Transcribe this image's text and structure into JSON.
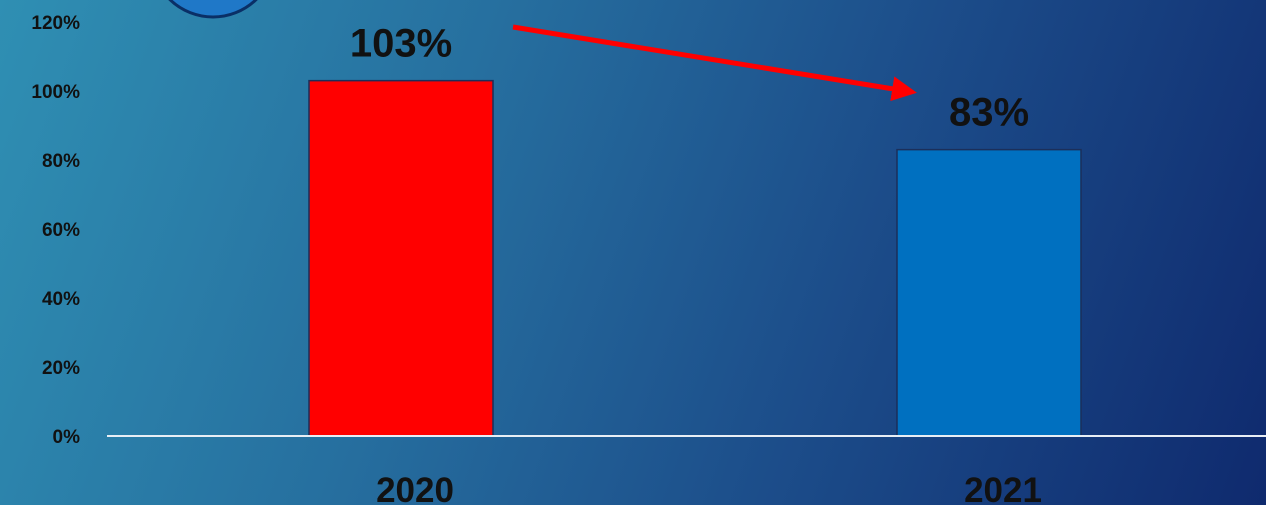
{
  "chart_data": {
    "type": "bar",
    "categories": [
      "2020",
      "2021"
    ],
    "values": [
      103,
      83
    ],
    "data_labels": [
      "103%",
      "83%"
    ],
    "bar_colors": [
      "#ff0000",
      "#0070c0"
    ],
    "ylim": [
      0,
      120
    ],
    "yticks": [
      0,
      20,
      40,
      60,
      80,
      100,
      120
    ],
    "ytick_labels": [
      "0%",
      "20%",
      "40%",
      "60%",
      "80%",
      "100%",
      "120%"
    ],
    "grid": false,
    "annotation": {
      "type": "arrow",
      "from_category": "2020",
      "to_category": "2021",
      "color": "#ff0000"
    },
    "decoration": {
      "type": "circle-badge",
      "color": "#1f78c8"
    }
  }
}
